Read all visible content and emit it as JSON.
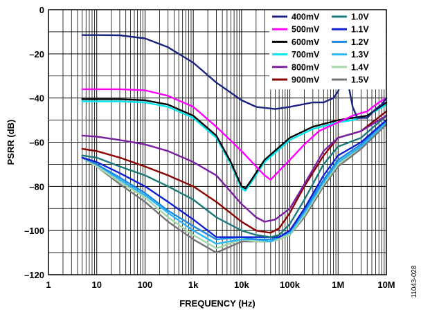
{
  "figure_id": "11043-028",
  "chart_data": {
    "type": "line",
    "xlabel": "FREQUENCY (Hz)",
    "ylabel": "PSRR (dB)",
    "x_scale": "log",
    "xlim": [
      1,
      10000000
    ],
    "ylim": [
      -120,
      0
    ],
    "grid": true,
    "legend_position": "top-right",
    "x_ticks": [
      {
        "value": 1,
        "label": "1"
      },
      {
        "value": 10,
        "label": "10"
      },
      {
        "value": 100,
        "label": "100"
      },
      {
        "value": 1000,
        "label": "1k"
      },
      {
        "value": 10000,
        "label": "10k"
      },
      {
        "value": 100000,
        "label": "100k"
      },
      {
        "value": 1000000,
        "label": "1M"
      },
      {
        "value": 10000000,
        "label": "10M"
      }
    ],
    "y_ticks": [
      {
        "value": 0,
        "label": "0"
      },
      {
        "value": -20,
        "label": "–20"
      },
      {
        "value": -40,
        "label": "–40"
      },
      {
        "value": -60,
        "label": "–60"
      },
      {
        "value": -80,
        "label": "–80"
      },
      {
        "value": -100,
        "label": "–100"
      },
      {
        "value": -120,
        "label": "–120"
      }
    ],
    "series": [
      {
        "name": "400mV",
        "color": "#1a237e",
        "x": [
          5,
          10,
          30,
          100,
          300,
          1000,
          3000,
          10000,
          20000,
          50000,
          100000,
          300000,
          500000,
          800000,
          1000000,
          1200000,
          1400000,
          1700000,
          2000000,
          2500000,
          3000000,
          4000000,
          6000000,
          8000000,
          10000000
        ],
        "y": [
          -11.5,
          -11.5,
          -11.6,
          -13,
          -17,
          -24,
          -33,
          -41,
          -44,
          -45,
          -44,
          -42,
          -42,
          -40,
          -37,
          -32,
          -31,
          -36,
          -44,
          -49,
          -49,
          -49,
          -45,
          -43,
          -40
        ]
      },
      {
        "name": "500mV",
        "color": "#ff00ff",
        "x": [
          5,
          10,
          30,
          100,
          300,
          1000,
          3000,
          10000,
          20000,
          30000,
          40000,
          60000,
          100000,
          200000,
          400000,
          1000000,
          2000000,
          4000000,
          7000000,
          10000000
        ],
        "y": [
          -36,
          -36,
          -36,
          -36.5,
          -39,
          -44,
          -53,
          -64,
          -71,
          -75,
          -77,
          -73,
          -68,
          -61,
          -55,
          -51,
          -48,
          -46,
          -42,
          -40
        ]
      },
      {
        "name": "600mV",
        "color": "#000000",
        "x": [
          5,
          10,
          30,
          100,
          300,
          1000,
          3000,
          6000,
          10000,
          12000,
          15000,
          30000,
          100000,
          300000,
          1000000,
          2000000,
          4000000,
          10000000
        ],
        "y": [
          -40.5,
          -40.5,
          -40.5,
          -41,
          -43,
          -48,
          -57,
          -69,
          -80,
          -81,
          -78,
          -68,
          -58,
          -53,
          -50,
          -49,
          -48,
          -42
        ]
      },
      {
        "name": "700mV",
        "color": "#00e5ee",
        "x": [
          5,
          10,
          30,
          100,
          300,
          1000,
          3000,
          6000,
          10000,
          12000,
          15000,
          30000,
          100000,
          300000,
          1000000,
          2000000,
          4000000,
          10000000
        ],
        "y": [
          -41.5,
          -41.5,
          -41.5,
          -42,
          -44,
          -49,
          -58,
          -70,
          -81,
          -82,
          -79,
          -69,
          -59,
          -54,
          -51,
          -50,
          -48,
          -43
        ]
      },
      {
        "name": "800mV",
        "color": "#7b1fa2",
        "x": [
          5,
          10,
          30,
          100,
          300,
          1000,
          3000,
          10000,
          20000,
          30000,
          50000,
          100000,
          200000,
          500000,
          1000000,
          3000000,
          10000000
        ],
        "y": [
          -57,
          -57.5,
          -59,
          -61,
          -64,
          -69,
          -75,
          -88,
          -94,
          -96,
          -95,
          -90,
          -79,
          -64,
          -58,
          -55,
          -48
        ]
      },
      {
        "name": "900mV",
        "color": "#8b0000",
        "x": [
          5,
          10,
          30,
          100,
          300,
          1000,
          3000,
          10000,
          20000,
          40000,
          60000,
          100000,
          200000,
          500000,
          1000000,
          3000000,
          10000000
        ],
        "y": [
          -63,
          -64,
          -67,
          -71,
          -75,
          -80,
          -87,
          -96,
          -100,
          -101,
          -99,
          -92,
          -80,
          -66,
          -58,
          -55,
          -46
        ]
      },
      {
        "name": "1.0V",
        "color": "#1b7a78",
        "x": [
          5,
          10,
          30,
          100,
          300,
          1000,
          3000,
          10000,
          20000,
          40000,
          60000,
          100000,
          200000,
          500000,
          1000000,
          3000000,
          10000000
        ],
        "y": [
          -66,
          -67,
          -71,
          -75,
          -80,
          -86,
          -94,
          -100,
          -102,
          -103,
          -102,
          -97,
          -86,
          -70,
          -62,
          -58,
          -48
        ]
      },
      {
        "name": "1.1V",
        "color": "#0d1fd1",
        "x": [
          5,
          10,
          30,
          100,
          300,
          1000,
          3000,
          10000,
          20000,
          40000,
          60000,
          100000,
          200000,
          500000,
          1000000,
          3000000,
          10000000
        ],
        "y": [
          -67,
          -69,
          -74,
          -80,
          -87,
          -95,
          -103,
          -103,
          -103,
          -103,
          -103,
          -100,
          -90,
          -75,
          -66,
          -60,
          -50
        ]
      },
      {
        "name": "1.2V",
        "color": "#1e88e5",
        "x": [
          5,
          10,
          30,
          100,
          300,
          1000,
          3000,
          10000,
          20000,
          40000,
          60000,
          100000,
          200000,
          500000,
          1000000,
          3000000,
          10000000
        ],
        "y": [
          -67,
          -70,
          -76,
          -83,
          -91,
          -98,
          -104,
          -103,
          -104,
          -104,
          -103,
          -100,
          -91,
          -77,
          -68,
          -61,
          -50
        ]
      },
      {
        "name": "1.3V",
        "color": "#29b6f6",
        "x": [
          5,
          10,
          30,
          100,
          300,
          1000,
          3000,
          10000,
          20000,
          40000,
          60000,
          100000,
          200000,
          500000,
          1000000,
          3000000,
          10000000
        ],
        "y": [
          -67,
          -70,
          -77,
          -84,
          -92,
          -100,
          -106,
          -104,
          -104,
          -105,
          -103,
          -101,
          -92,
          -78,
          -69,
          -62,
          -51
        ]
      },
      {
        "name": "1.4V",
        "color": "#a5d6a7",
        "x": [
          5,
          10,
          30,
          100,
          300,
          1000,
          3000,
          10000,
          20000,
          40000,
          60000,
          100000,
          200000,
          500000,
          1000000,
          3000000,
          10000000
        ],
        "y": [
          -67,
          -71,
          -78,
          -85,
          -94,
          -102,
          -108,
          -104,
          -105,
          -105,
          -104,
          -102,
          -93,
          -79,
          -70,
          -62,
          -51
        ]
      },
      {
        "name": "1.5V",
        "color": "#757575",
        "x": [
          5,
          10,
          30,
          100,
          300,
          1000,
          3000,
          10000,
          20000,
          40000,
          60000,
          100000,
          200000,
          500000,
          1000000,
          3000000,
          10000000
        ],
        "y": [
          -67,
          -71,
          -79,
          -87,
          -96,
          -104,
          -110,
          -105,
          -105,
          -105,
          -104,
          -102,
          -94,
          -80,
          -71,
          -63,
          -52
        ]
      }
    ]
  }
}
